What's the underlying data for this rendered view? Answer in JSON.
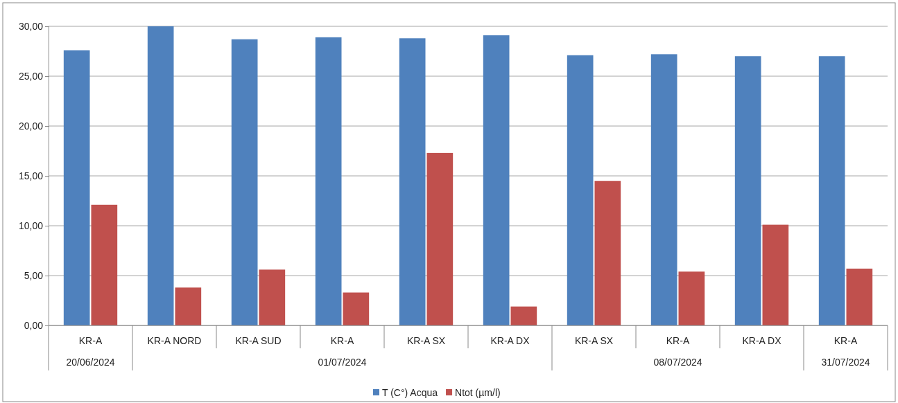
{
  "chart_data": {
    "type": "bar",
    "categories": [
      "KR-A",
      "KR-A NORD",
      "KR-A SUD",
      "KR-A",
      "KR-A SX",
      "KR-A DX",
      "KR-A SX",
      "KR-A",
      "KR-A DX",
      "KR-A"
    ],
    "series": [
      {
        "name": "T (C°) Acqua",
        "color": "#4f81bd",
        "values": [
          27.6,
          30.0,
          28.7,
          28.9,
          28.8,
          29.1,
          27.1,
          27.2,
          27.0,
          27.0
        ]
      },
      {
        "name": "Ntot (µm/l)",
        "color": "#c0504d",
        "values": [
          12.1,
          3.8,
          5.6,
          3.3,
          17.3,
          1.9,
          14.5,
          5.4,
          10.1,
          5.7
        ]
      }
    ],
    "ylim": [
      0,
      30
    ],
    "yticks": [
      {
        "value": 0,
        "label": "0,00"
      },
      {
        "value": 5,
        "label": "5,00"
      },
      {
        "value": 10,
        "label": "10,00"
      },
      {
        "value": 15,
        "label": "15,00"
      },
      {
        "value": 20,
        "label": "20,00"
      },
      {
        "value": 25,
        "label": "25,00"
      },
      {
        "value": 30,
        "label": "30,00"
      }
    ],
    "grid": "y",
    "legend": "bottom",
    "annotations": [
      "20/06/2024",
      "01/07/2024",
      "08/07/2024",
      "31/07/2024"
    ]
  }
}
